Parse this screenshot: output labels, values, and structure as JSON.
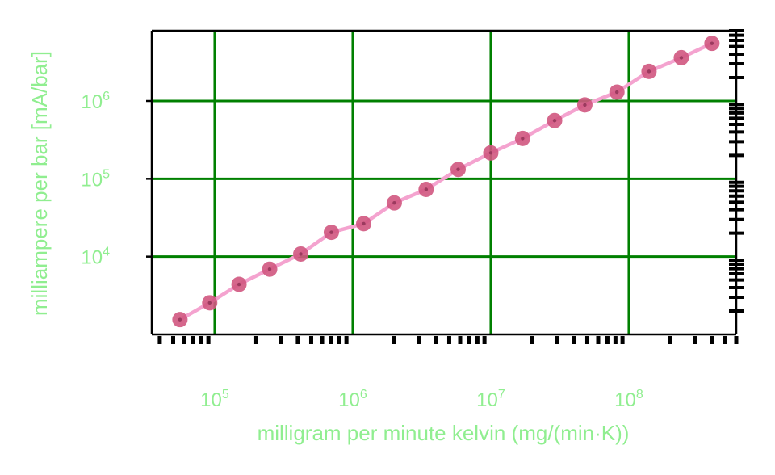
{
  "chart_data": {
    "type": "line",
    "xlabel": "milligram per minute kelvin (mg/(min·K))",
    "ylabel": "milliampere per bar [mA/bar]",
    "xscale": "log",
    "yscale": "log",
    "xlim": [
      35000,
      600000000
    ],
    "ylim": [
      1000,
      8000000
    ],
    "grid": true,
    "legend": "none",
    "colors": {
      "grid": "#008000",
      "line": "#f4a3cf",
      "marker": "#d0577f",
      "marker_core": "#9b3a5e",
      "label": "#90ee90",
      "axis": "#000000"
    },
    "x_ticks": [
      {
        "value": 100000,
        "base": "10",
        "exp": "5"
      },
      {
        "value": 1000000,
        "base": "10",
        "exp": "6"
      },
      {
        "value": 10000000,
        "base": "10",
        "exp": "7"
      },
      {
        "value": 100000000,
        "base": "10",
        "exp": "8"
      }
    ],
    "y_ticks": [
      {
        "value": 10000,
        "base": "10",
        "exp": "4"
      },
      {
        "value": 100000,
        "base": "10",
        "exp": "5"
      },
      {
        "value": 1000000,
        "base": "10",
        "exp": "6"
      }
    ],
    "series": [
      {
        "x": [
          56000,
          92000,
          150000,
          250000,
          420000,
          700000,
          1200000,
          2000000,
          3400000,
          5800000,
          10000000,
          17000000,
          29000000,
          48000000,
          82000000,
          140000000,
          240000000,
          400000000
        ],
        "y": [
          1550,
          2550,
          4400,
          6900,
          10800,
          20500,
          26500,
          49000,
          73000,
          132000,
          215000,
          330000,
          560000,
          890000,
          1300000,
          2400000,
          3600000,
          5500000
        ]
      }
    ]
  }
}
